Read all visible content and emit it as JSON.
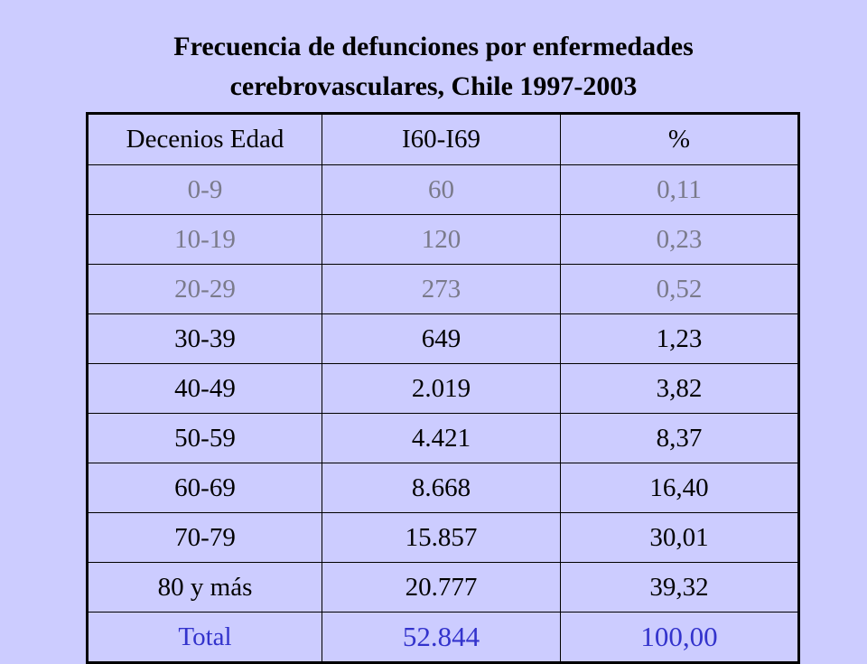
{
  "title": {
    "line1": "Frecuencia de defunciones por enfermedades",
    "line2": "cerebrovasculares, Chile 1997-2003"
  },
  "table": {
    "headers": [
      "Decenios Edad",
      "I60-I69",
      "%"
    ],
    "rows": [
      {
        "age": "0-9",
        "count": "60",
        "pct": "0,11"
      },
      {
        "age": "10-19",
        "count": "120",
        "pct": "0,23"
      },
      {
        "age": "20-29",
        "count": "273",
        "pct": "0,52"
      },
      {
        "age": "30-39",
        "count": "649",
        "pct": "1,23"
      },
      {
        "age": "40-49",
        "count": "2.019",
        "pct": "3,82"
      },
      {
        "age": "50-59",
        "count": "4.421",
        "pct": "8,37"
      },
      {
        "age": "60-69",
        "count": "8.668",
        "pct": "16,40"
      },
      {
        "age": "70-79",
        "count": "15.857",
        "pct": "30,01"
      },
      {
        "age": "80 y más",
        "count": "20.777",
        "pct": "39,32"
      }
    ],
    "total": {
      "label": "Total",
      "count": "52.844",
      "pct": "100,00"
    }
  },
  "colors": {
    "background": "#ccccff",
    "muted_text": "#7a7a8a",
    "total_text": "#3333cc"
  }
}
